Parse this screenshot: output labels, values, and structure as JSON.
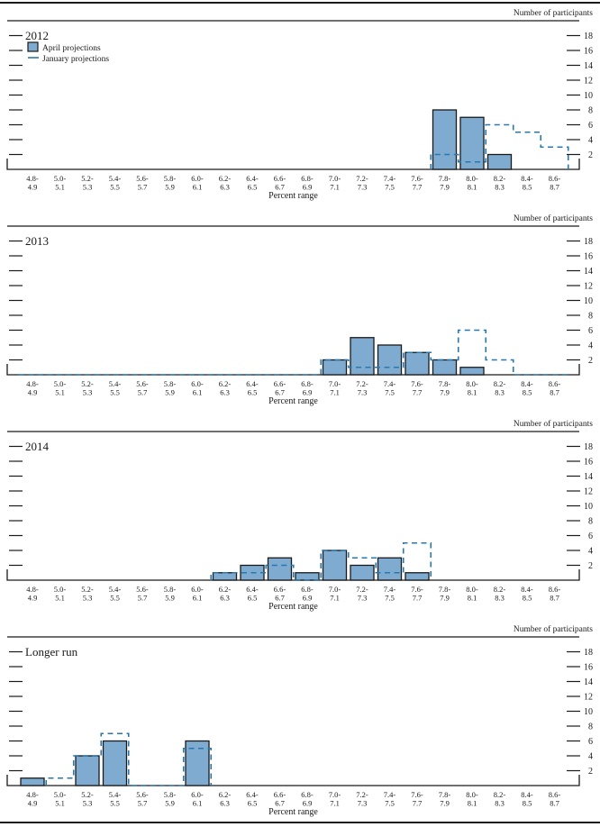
{
  "figure": {
    "y_axis_label": "Number of participants",
    "x_axis_label": "Percent range",
    "legend": {
      "april": "April projections",
      "january": "January projections"
    },
    "y_ticks": [
      2,
      4,
      6,
      8,
      10,
      12,
      14,
      16,
      18
    ],
    "colors": {
      "bar_fill": "#7FABD1",
      "bar_stroke": "#1a1a1a",
      "dash_blue": "#2878AE",
      "axis": "#1a1a1a",
      "text": "#1a1a1a"
    }
  },
  "chart_data": [
    {
      "type": "bar",
      "title": "2012",
      "xlabel": "Percent range",
      "ylabel": "Number of participants",
      "ylim": [
        0,
        18
      ],
      "legend_position": "top-left",
      "categories": [
        "4.8-4.9",
        "5.0-5.1",
        "5.2-5.3",
        "5.4-5.5",
        "5.6-5.7",
        "5.8-5.9",
        "6.0-6.1",
        "6.2-6.3",
        "6.4-6.5",
        "6.6-6.7",
        "6.8-6.9",
        "7.0-7.1",
        "7.2-7.3",
        "7.4-7.5",
        "7.6-7.7",
        "7.8-7.9",
        "8.0-8.1",
        "8.2-8.3",
        "8.4-8.5",
        "8.6-8.7"
      ],
      "series": [
        {
          "name": "April projections",
          "style": "bars",
          "values": [
            0,
            0,
            0,
            0,
            0,
            0,
            0,
            0,
            0,
            0,
            0,
            0,
            0,
            0,
            0,
            8,
            7,
            2,
            0,
            0
          ]
        },
        {
          "name": "January projections",
          "style": "dashed-step",
          "draw_range": [
            15,
            19
          ],
          "values": [
            0,
            0,
            0,
            0,
            0,
            0,
            0,
            0,
            0,
            0,
            0,
            0,
            0,
            0,
            0,
            2,
            1,
            6,
            5,
            3
          ]
        }
      ]
    },
    {
      "type": "bar",
      "title": "2013",
      "xlabel": "Percent range",
      "ylabel": "Number of participants",
      "ylim": [
        0,
        18
      ],
      "categories": [
        "4.8-4.9",
        "5.0-5.1",
        "5.2-5.3",
        "5.4-5.5",
        "5.6-5.7",
        "5.8-5.9",
        "6.0-6.1",
        "6.2-6.3",
        "6.4-6.5",
        "6.6-6.7",
        "6.8-6.9",
        "7.0-7.1",
        "7.2-7.3",
        "7.4-7.5",
        "7.6-7.7",
        "7.8-7.9",
        "8.0-8.1",
        "8.2-8.3",
        "8.4-8.5",
        "8.6-8.7"
      ],
      "series": [
        {
          "name": "April projections",
          "style": "bars",
          "values": [
            0,
            0,
            0,
            0,
            0,
            0,
            0,
            0,
            0,
            0,
            0,
            2,
            5,
            4,
            3,
            2,
            1,
            0,
            0,
            0
          ]
        },
        {
          "name": "January projections",
          "style": "dashed-step",
          "draw_range": [
            0,
            19
          ],
          "values": [
            0,
            0,
            0,
            0,
            0,
            0,
            0,
            0,
            0,
            0,
            0,
            2,
            1,
            1,
            3,
            2,
            6,
            2,
            0,
            0
          ]
        }
      ]
    },
    {
      "type": "bar",
      "title": "2014",
      "xlabel": "Percent range",
      "ylabel": "Number of participants",
      "ylim": [
        0,
        18
      ],
      "categories": [
        "4.8-4.9",
        "5.0-5.1",
        "5.2-5.3",
        "5.4-5.5",
        "5.6-5.7",
        "5.8-5.9",
        "6.0-6.1",
        "6.2-6.3",
        "6.4-6.5",
        "6.6-6.7",
        "6.8-6.9",
        "7.0-7.1",
        "7.2-7.3",
        "7.4-7.5",
        "7.6-7.7",
        "7.8-7.9",
        "8.0-8.1",
        "8.2-8.3",
        "8.4-8.5",
        "8.6-8.7"
      ],
      "series": [
        {
          "name": "April projections",
          "style": "bars",
          "values": [
            0,
            0,
            0,
            0,
            0,
            0,
            0,
            1,
            2,
            3,
            1,
            4,
            2,
            3,
            1,
            0,
            0,
            0,
            0,
            0
          ]
        },
        {
          "name": "January projections",
          "style": "dashed-step",
          "draw_range": [
            7,
            14
          ],
          "values": [
            0,
            0,
            0,
            0,
            0,
            0,
            0,
            1,
            1,
            2,
            0,
            4,
            3,
            1,
            5,
            0,
            0,
            0,
            0,
            0
          ]
        }
      ]
    },
    {
      "type": "bar",
      "title": "Longer run",
      "xlabel": "Percent range",
      "ylabel": "Number of participants",
      "ylim": [
        0,
        18
      ],
      "categories": [
        "4.8-4.9",
        "5.0-5.1",
        "5.2-5.3",
        "5.4-5.5",
        "5.6-5.7",
        "5.8-5.9",
        "6.0-6.1",
        "6.2-6.3",
        "6.4-6.5",
        "6.6-6.7",
        "6.8-6.9",
        "7.0-7.1",
        "7.2-7.3",
        "7.4-7.5",
        "7.6-7.7",
        "7.8-7.9",
        "8.0-8.1",
        "8.2-8.3",
        "8.4-8.5",
        "8.6-8.7"
      ],
      "series": [
        {
          "name": "April projections",
          "style": "bars",
          "values": [
            1,
            0,
            4,
            6,
            0,
            0,
            6,
            0,
            0,
            0,
            0,
            0,
            0,
            0,
            0,
            0,
            0,
            0,
            0,
            0
          ]
        },
        {
          "name": "January projections",
          "style": "dashed-step",
          "draw_range": [
            1,
            6
          ],
          "values": [
            0,
            1,
            4,
            7,
            0,
            0,
            5,
            0,
            0,
            0,
            0,
            0,
            0,
            0,
            0,
            0,
            0,
            0,
            0,
            0
          ]
        }
      ]
    }
  ]
}
